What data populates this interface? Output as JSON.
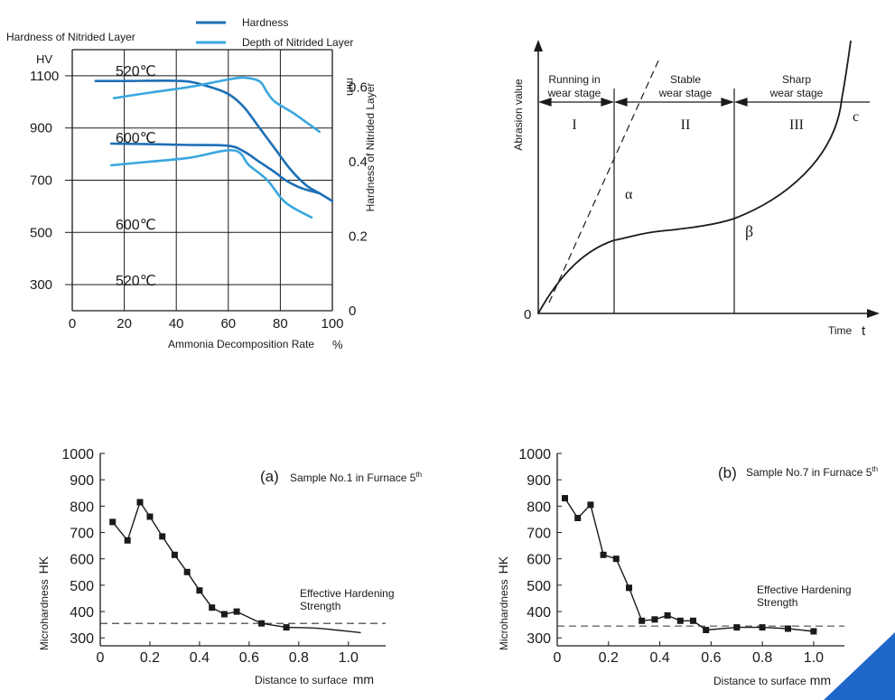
{
  "colors": {
    "hardness": "#1d6fb6",
    "depth": "#3aa7de",
    "ink": "#1a1a1a",
    "corner": "#1f66c9"
  },
  "chart_data": [
    {
      "id": "nitriding",
      "type": "line",
      "ylabel": "Hardness of Nitrided Layer",
      "ylabel_unit": "HV",
      "y2label": "Hardness of Nitrided Layer",
      "y2label_unit": "mm",
      "xlabel": "Ammonia Decomposition Rate",
      "xlabel_unit": "%",
      "x_ticks": [
        "0",
        "20",
        "40",
        "60",
        "80",
        "100"
      ],
      "y_ticks": [
        "300",
        "500",
        "700",
        "900",
        "1100"
      ],
      "y2_ticks": [
        "0",
        "0.2",
        "0.4",
        "0.6"
      ],
      "xlim": [
        0,
        100
      ],
      "ylim": [
        200,
        1200
      ],
      "y2lim": [
        0,
        0.7
      ],
      "legend": [
        {
          "label": "Hardness",
          "key": "hardness"
        },
        {
          "label": "Depth of Nitrided Layer",
          "key": "depth"
        }
      ],
      "series": [
        {
          "name": "520℃",
          "label": "520℃",
          "axis": "left",
          "key": "hardness",
          "x": [
            9,
            20,
            42,
            52,
            60,
            66,
            72,
            78,
            84,
            90,
            95,
            100
          ],
          "y": [
            1080,
            1080,
            1080,
            1060,
            1030,
            980,
            900,
            820,
            740,
            680,
            650,
            620
          ]
        },
        {
          "name": "600℃",
          "label": "600℃",
          "axis": "left",
          "key": "hardness",
          "x": [
            15,
            30,
            45,
            60,
            66,
            72,
            78,
            82,
            88,
            95
          ],
          "y": [
            840,
            838,
            835,
            832,
            810,
            770,
            730,
            700,
            670,
            650
          ]
        },
        {
          "name": "600℃",
          "label": "600℃",
          "axis": "right",
          "key": "depth",
          "x": [
            16,
            30,
            45,
            60,
            66,
            72,
            75,
            78,
            85,
            95
          ],
          "y": [
            0.57,
            0.585,
            0.6,
            0.62,
            0.625,
            0.615,
            0.585,
            0.56,
            0.53,
            0.48
          ]
        },
        {
          "name": "520℃",
          "label": "520℃",
          "axis": "right",
          "key": "depth",
          "x": [
            15,
            30,
            45,
            62,
            68,
            75,
            82,
            92
          ],
          "y": [
            0.39,
            0.4,
            0.41,
            0.43,
            0.39,
            0.35,
            0.29,
            0.25
          ]
        }
      ]
    },
    {
      "id": "wear",
      "type": "line",
      "ylabel": "Abrasion value",
      "xlabel": "Time",
      "xlabel_symbol": "t",
      "origin": "0",
      "stages": [
        {
          "title_line1": "Running in",
          "title_line2": "wear stage",
          "roman": "I"
        },
        {
          "title_line1": "Stable",
          "title_line2": "wear stage",
          "roman": "II"
        },
        {
          "title_line1": "Sharp",
          "title_line2": "wear stage",
          "roman": "III"
        }
      ],
      "annotations": {
        "alpha": "α",
        "beta": "β",
        "c": "c"
      }
    },
    {
      "id": "sample1",
      "type": "line",
      "panel_letter": "(a)",
      "title": "Sample No.1 in Furnace 5",
      "title_sup": "th",
      "ylabel": "Microhardness",
      "ylabel_unit": "HK",
      "xlabel": "Distance to surface",
      "xlabel_unit": "mm",
      "x_ticks": [
        "0",
        "0.2",
        "0.4",
        "0.6",
        "0.8",
        "1.0"
      ],
      "y_ticks": [
        "300",
        "400",
        "500",
        "600",
        "700",
        "800",
        "900",
        "1000"
      ],
      "xlim": [
        0,
        1.15
      ],
      "ylim": [
        270,
        1000
      ],
      "threshold": {
        "value": 355,
        "label_line1": "Effective Hardening",
        "label_line2": "Strength"
      },
      "x": [
        0.05,
        0.11,
        0.16,
        0.2,
        0.25,
        0.3,
        0.35,
        0.4,
        0.45,
        0.5,
        0.55,
        0.65,
        0.75
      ],
      "y": [
        740,
        670,
        815,
        760,
        685,
        615,
        550,
        480,
        415,
        390,
        400,
        355,
        340
      ],
      "tail_x": [
        0.75,
        0.85,
        0.95,
        1.05
      ],
      "tail_y": [
        340,
        338,
        330,
        320
      ]
    },
    {
      "id": "sample7",
      "type": "line",
      "panel_letter": "(b)",
      "title": "Sample No.7 in Furnace 5",
      "title_sup": "th",
      "ylabel": "Microhardness",
      "ylabel_unit": "HK",
      "xlabel": "Distance to surface",
      "xlabel_unit": "mm",
      "x_ticks": [
        "0",
        "0.2",
        "0.4",
        "0.6",
        "0.8",
        "1.0"
      ],
      "y_ticks": [
        "300",
        "400",
        "500",
        "600",
        "700",
        "800",
        "900",
        "1000"
      ],
      "xlim": [
        0,
        1.12
      ],
      "ylim": [
        270,
        1000
      ],
      "threshold": {
        "value": 345,
        "label_line1": "Effective Hardening",
        "label_line2": "Strength"
      },
      "x": [
        0.03,
        0.08,
        0.13,
        0.18,
        0.23,
        0.28,
        0.33,
        0.38,
        0.43,
        0.48,
        0.53,
        0.58,
        0.7,
        0.8,
        0.9,
        1.0
      ],
      "y": [
        830,
        755,
        805,
        615,
        600,
        490,
        365,
        370,
        385,
        365,
        365,
        330,
        340,
        340,
        335,
        325
      ]
    }
  ]
}
